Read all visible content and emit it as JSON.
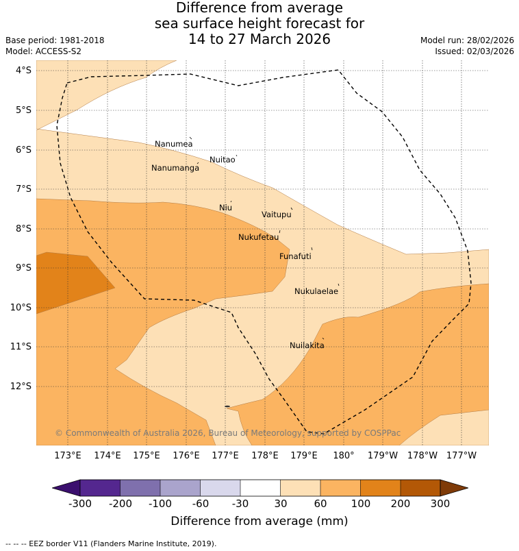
{
  "title": {
    "line1": "Difference from average",
    "line2": "sea surface height forecast for",
    "line3": "14 to 27 March 2026"
  },
  "meta": {
    "base_period": "Base period: 1981-2018",
    "model": "Model: ACCESS-S2",
    "model_run": "Model run: 28/02/2026",
    "issued": "Issued: 02/03/2026"
  },
  "latitude_labels": [
    "4°S",
    "5°S",
    "6°S",
    "7°S",
    "8°S",
    "9°S",
    "10°S",
    "11°S",
    "12°S"
  ],
  "longitude_labels": [
    "173°E",
    "174°E",
    "175°E",
    "176°E",
    "177°E",
    "178°E",
    "179°E",
    "180°",
    "179°W",
    "178°W",
    "177°W"
  ],
  "places": [
    "Nanumea",
    "Nuitao",
    "Nanumanga",
    "Niu",
    "Vaitupu",
    "Nukufetau",
    "Funafuti",
    "Nukulaelae",
    "Nuilakita"
  ],
  "copyright": "© Commonwealth of Australia 2026, Bureau of Meteorology, supported by COSPPac",
  "colorbar": {
    "ticks": [
      "-300",
      "-200",
      "-100",
      "-60",
      "-30",
      "30",
      "60",
      "100",
      "200",
      "300"
    ],
    "colors": [
      "#54278f",
      "#7f70ad",
      "#aaa4cc",
      "#d9d8ec",
      "#ffffff",
      "#fde0b6",
      "#fbb461",
      "#e2831a",
      "#b35806"
    ],
    "under_color": "#3b0f6e",
    "over_color": "#7f3b08",
    "title": "Difference from average (mm)"
  },
  "legend": {
    "eez": "--  --  -- EEZ border V11 (Flanders Marine Institute, 2019)."
  },
  "map_colors": {
    "c30_60": "#fde0b6",
    "c60_100": "#fbb461",
    "c100_200": "#e2831a"
  }
}
